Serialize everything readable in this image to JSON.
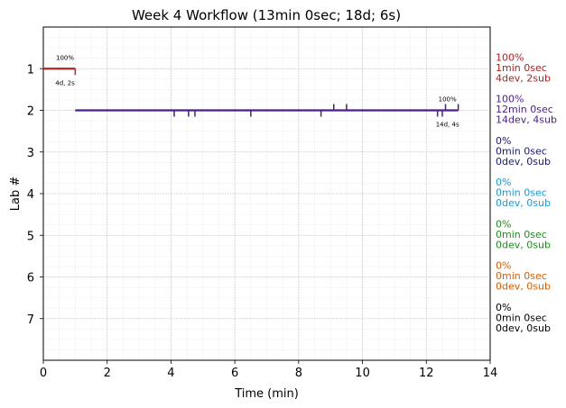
{
  "chart_data": {
    "type": "line",
    "title": "Week 4 Workflow (13min 0sec; 18d; 6s)",
    "xlabel": "Time (min)",
    "ylabel": "Lab #",
    "xlim": [
      0,
      14
    ],
    "ylim": [
      8,
      0
    ],
    "x_ticks": [
      0,
      2,
      4,
      6,
      8,
      10,
      12,
      14
    ],
    "y_ticks": [
      1,
      2,
      3,
      4,
      5,
      6,
      7
    ],
    "grid": true,
    "series": [
      {
        "lab": 1,
        "color": "#b22222",
        "start": 0,
        "end": 1,
        "dev_ticks": [
          1.0
        ],
        "sub_ticks": [],
        "percent_label": "100%",
        "count_label": "4d, 2s",
        "summary": [
          "100%",
          "1min 0sec",
          "4dev, 2sub"
        ]
      },
      {
        "lab": 2,
        "color": "#4b1c8c",
        "start": 1,
        "end": 13,
        "dev_ticks": [
          4.1,
          4.55,
          4.75,
          6.5,
          8.7,
          12.35,
          12.5
        ],
        "sub_ticks": [
          9.1,
          9.5,
          12.6,
          13.0
        ],
        "percent_label": "100%",
        "count_label": "14d, 4s",
        "summary": [
          "100%",
          "12min 0sec",
          "14dev, 4sub"
        ]
      },
      {
        "lab": 3,
        "color": "#191970",
        "summary": [
          "0%",
          "0min 0sec",
          "0dev, 0sub"
        ]
      },
      {
        "lab": 4,
        "color": "#1e9ad6",
        "summary": [
          "0%",
          "0min 0sec",
          "0dev, 0sub"
        ]
      },
      {
        "lab": 5,
        "color": "#228b22",
        "summary": [
          "0%",
          "0min 0sec",
          "0dev, 0sub"
        ]
      },
      {
        "lab": 6,
        "color": "#d95f02",
        "summary": [
          "0%",
          "0min 0sec",
          "0dev, 0sub"
        ]
      },
      {
        "lab": 7,
        "color": "#000000",
        "summary": [
          "0%",
          "0min 0sec",
          "0dev, 0sub"
        ]
      }
    ]
  }
}
